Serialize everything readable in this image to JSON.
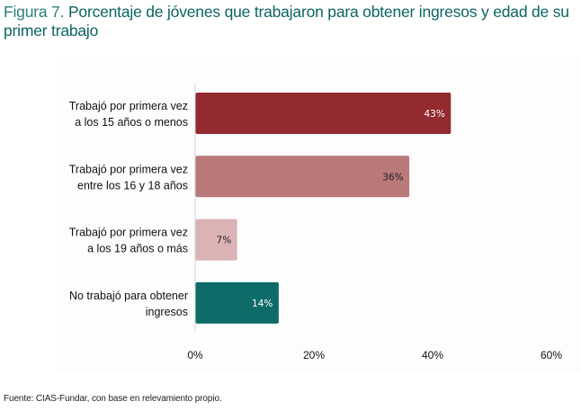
{
  "title": {
    "prefix": "Figura 7.",
    "main": "Porcentaje de jóvenes que trabajaron para obtener ingresos y edad de su",
    "line2": "primer trabajo"
  },
  "source": "Fuente: CIAS-Fundar, con base en relevamiento propio.",
  "chart_data": {
    "type": "bar",
    "orientation": "horizontal",
    "title": "Porcentaje de jóvenes que trabajaron para obtener ingresos y edad de su primer trabajo",
    "xlabel": "",
    "ylabel": "",
    "xlim": [
      0,
      60
    ],
    "grid": false,
    "legend": "none",
    "x_ticks": [
      "0%",
      "20%",
      "40%",
      "60%"
    ],
    "x_tick_values": [
      0,
      20,
      40,
      60
    ],
    "categories": [
      [
        "Trabajó por primera vez",
        "a los 15 años o menos"
      ],
      [
        "Trabajó por primera vez",
        "entre los 16 y 18 años"
      ],
      [
        "Trabajó por primera vez",
        "a los 19 años o más"
      ],
      [
        "No trabajó para obtener",
        "ingresos"
      ]
    ],
    "values": [
      43,
      36,
      7,
      14
    ],
    "data_labels": [
      "43%",
      "36%",
      "7%",
      "14%"
    ],
    "colors": [
      "#922a30",
      "#b9787a",
      "#dcb3b5",
      "#0f6b68"
    ],
    "label_colors": [
      "#ffffff",
      "#222222",
      "#222222",
      "#ffffff"
    ]
  }
}
